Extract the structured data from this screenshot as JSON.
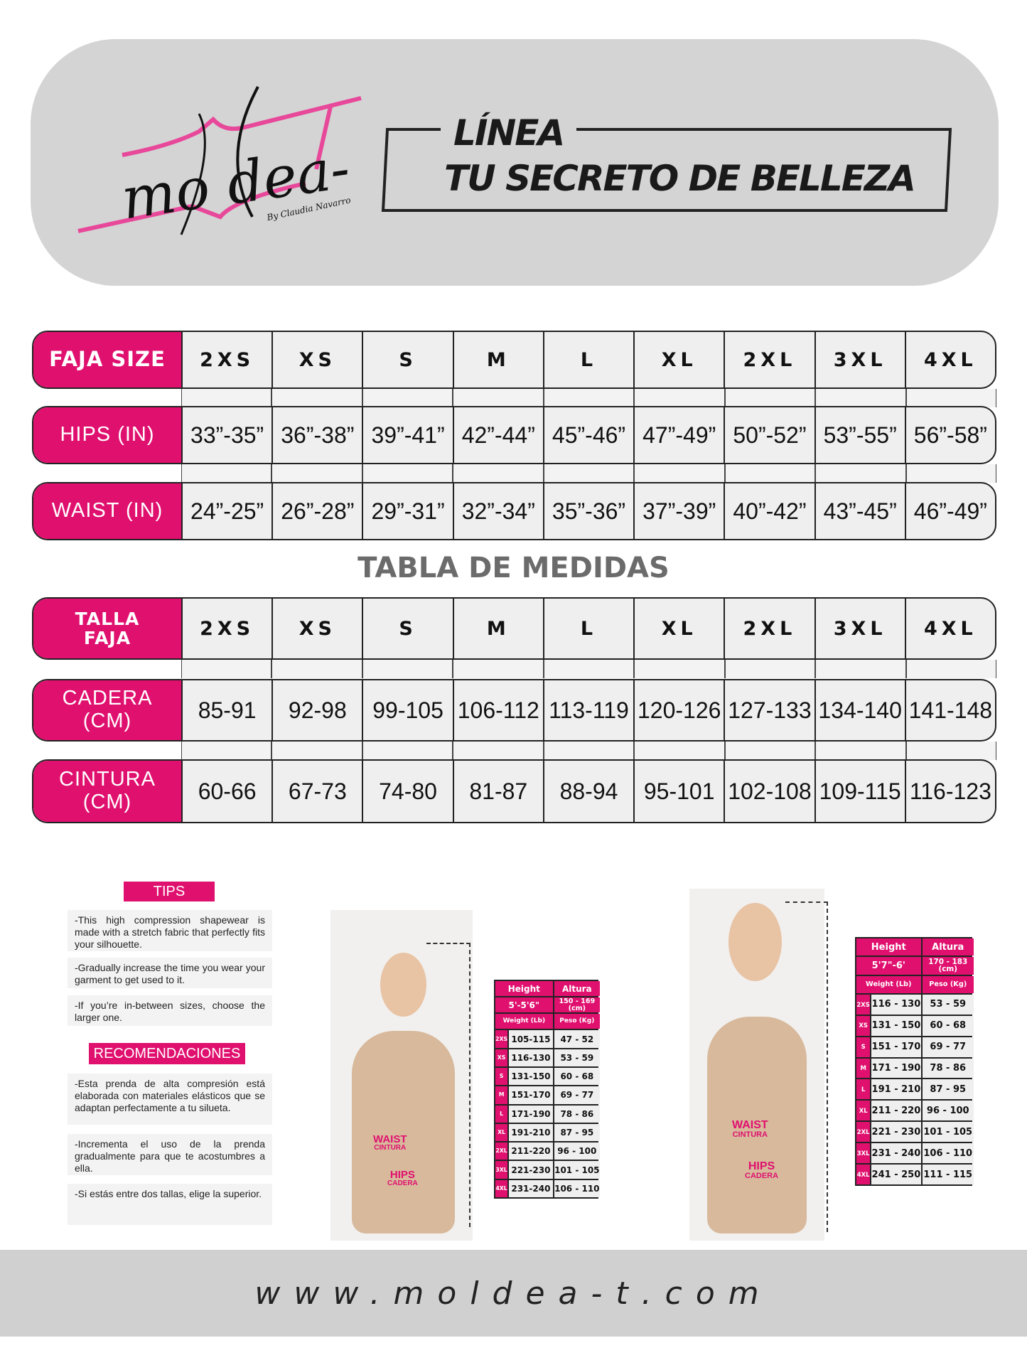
{
  "brand": {
    "logo_text": "moldea-T",
    "byline": "By Claudia Navarro",
    "accent": "#e0106f",
    "header_bg": "#d4d4d4"
  },
  "title": {
    "line1": "LÍNEA",
    "line2": "TU SECRETO DE BELLEZA"
  },
  "us_table": {
    "size_label": "FAJA SIZE",
    "hips_label": "HIPS (IN)",
    "waist_label": "WAIST (IN)",
    "sizes": [
      "2XS",
      "XS",
      "S",
      "M",
      "L",
      "XL",
      "2XL",
      "3XL",
      "4XL"
    ],
    "hips": [
      "33”-35”",
      "36”-38”",
      "39”-41”",
      "42”-44”",
      "45”-46”",
      "47”-49”",
      "50”-52”",
      "53”-55”",
      "56”-58”"
    ],
    "waist": [
      "24”-25”",
      "26”-28”",
      "29”-31”",
      "32”-34”",
      "35”-36”",
      "37”-39”",
      "40”-42”",
      "43”-45”",
      "46”-49”"
    ]
  },
  "metric_heading": "TABLA DE MEDIDAS",
  "metric_table": {
    "size_label_1": "TALLA",
    "size_label_2": "FAJA",
    "hips_label_1": "CADERA",
    "hips_label_2": "(CM)",
    "waist_label_1": "CINTURA",
    "waist_label_2": "(CM)",
    "sizes": [
      "2XS",
      "XS",
      "S",
      "M",
      "L",
      "XL",
      "2XL",
      "3XL",
      "4XL"
    ],
    "hips": [
      "85-91",
      "92-98",
      "99-105",
      "106-112",
      "113-119",
      "120-126",
      "127-133",
      "134-140",
      "141-148"
    ],
    "waist": [
      "60-66",
      "67-73",
      "74-80",
      "81-87",
      "88-94",
      "95-101",
      "102-108",
      "109-115",
      "116-123"
    ]
  },
  "tips": {
    "heading": "TIPS",
    "items": [
      "-This high compression shapewear is made with a stretch fabric that perfectly fits your silhouette.",
      "-Gradually increase the time you wear your garment to get used to it.",
      "-If you’re in-between sizes, choose the larger one."
    ]
  },
  "recomendaciones": {
    "heading": "RECOMENDACIONES",
    "items": [
      "-Esta prenda de alta compresión está elaborada con materiales elásticos que se adaptan perfectamente a tu silueta.",
      "-Incrementa el uso de la prenda gradualmente para que te acostumbres a ella.",
      "-Si estás entre dos tallas, elige la superior."
    ]
  },
  "photo_labels": {
    "waist": "WAIST",
    "cintura": "CINTURA",
    "hips": "HIPS",
    "cadera": "CADERA"
  },
  "weight_tables": [
    {
      "height_label": "Height",
      "altura_label": "Altura",
      "height": "5'-5'6\"",
      "altura": "150 - 169 (cm)",
      "weight_label": "Weight (Lb)",
      "peso_label": "Peso (Kg)",
      "rows": [
        [
          "2XS",
          "105-115",
          "47 - 52"
        ],
        [
          "XS",
          "116-130",
          "53 - 59"
        ],
        [
          "S",
          "131-150",
          "60 - 68"
        ],
        [
          "M",
          "151-170",
          "69 - 77"
        ],
        [
          "L",
          "171-190",
          "78 - 86"
        ],
        [
          "XL",
          "191-210",
          "87 - 95"
        ],
        [
          "2XL",
          "211-220",
          "96 - 100"
        ],
        [
          "3XL",
          "221-230",
          "101 - 105"
        ],
        [
          "4XL",
          "231-240",
          "106 - 110"
        ]
      ]
    },
    {
      "height_label": "Height",
      "altura_label": "Altura",
      "height": "5'7\"-6'",
      "altura": "170 - 183 (cm)",
      "weight_label": "Weight (Lb)",
      "peso_label": "Peso (Kg)",
      "rows": [
        [
          "2XS",
          "116 - 130",
          "53 - 59"
        ],
        [
          "XS",
          "131 - 150",
          "60 - 68"
        ],
        [
          "S",
          "151 - 170",
          "69 - 77"
        ],
        [
          "M",
          "171 - 190",
          "78 - 86"
        ],
        [
          "L",
          "191 - 210",
          "87 - 95"
        ],
        [
          "XL",
          "211 - 220",
          "96 - 100"
        ],
        [
          "2XL",
          "221 - 230",
          "101 - 105"
        ],
        [
          "3XL",
          "231 - 240",
          "106 - 110"
        ],
        [
          "4XL",
          "241 - 250",
          "111 - 115"
        ]
      ]
    }
  ],
  "footer": {
    "url": "www.moldea-t.com"
  }
}
